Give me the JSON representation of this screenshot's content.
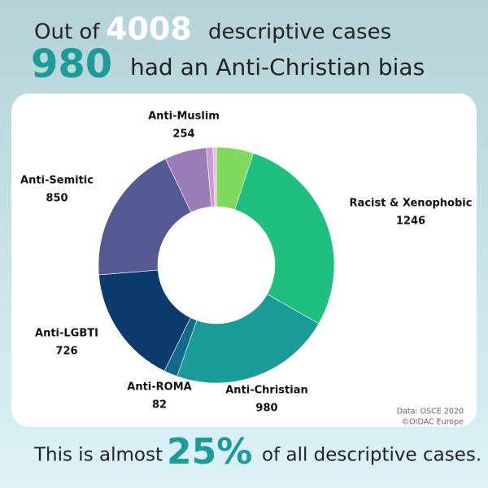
{
  "header": {
    "prefix": "Out of",
    "total": "4008",
    "middle": "descriptive cases",
    "count": "980",
    "suffix": "had an Anti-Christian bias"
  },
  "chart_data": {
    "type": "donut",
    "categories": [
      null,
      "Racist & Xenophobic",
      "Anti-Christian",
      "Anti-ROMA",
      "Anti-LGBTI",
      "Anti-Semitic",
      "Anti-Muslim",
      null,
      null
    ],
    "values": [
      225,
      1246,
      980,
      82,
      726,
      850,
      254,
      40,
      20
    ],
    "colors": [
      "#7fd95a",
      "#1fbf7e",
      "#1b9c98",
      "#106a8c",
      "#0d3a6c",
      "#545a91",
      "#9a7db6",
      "#c99bd2",
      "#eab6e2"
    ]
  },
  "footer": {
    "prefix": "This is almost",
    "share": "25%",
    "suffix": "of all descriptive cases."
  },
  "source": [
    "Data: OSCE 2020",
    "©OIDAC Europe"
  ]
}
